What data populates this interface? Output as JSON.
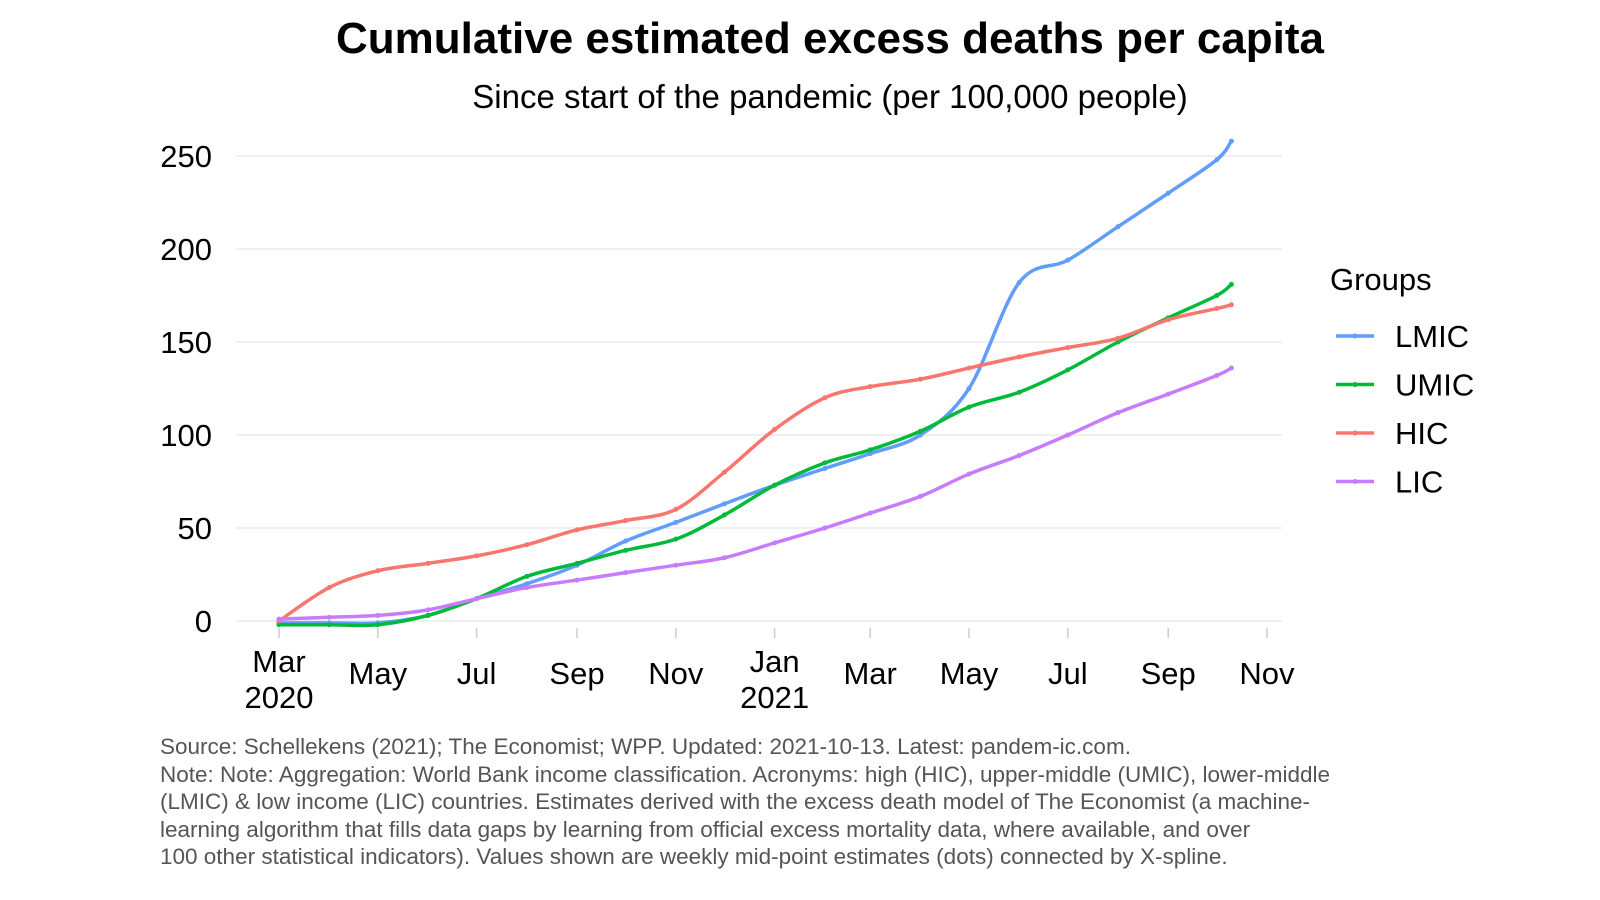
{
  "chart_data": {
    "type": "line",
    "title": "Cumulative estimated excess deaths per capita",
    "subtitle": "Since start of the pandemic (per 100,000 people)",
    "xlabel": "",
    "ylabel": "",
    "ylim": [
      0,
      250
    ],
    "yticks": [
      0,
      50,
      100,
      150,
      200,
      250
    ],
    "xlim": [
      "2020-03-01",
      "2021-11-01"
    ],
    "xticks": [
      {
        "date": "2020-03-01",
        "label": "Mar",
        "year": "2020"
      },
      {
        "date": "2020-05-01",
        "label": "May",
        "year": ""
      },
      {
        "date": "2020-07-01",
        "label": "Jul",
        "year": ""
      },
      {
        "date": "2020-09-01",
        "label": "Sep",
        "year": ""
      },
      {
        "date": "2020-11-01",
        "label": "Nov",
        "year": ""
      },
      {
        "date": "2021-01-01",
        "label": "Jan",
        "year": "2021"
      },
      {
        "date": "2021-03-01",
        "label": "Mar",
        "year": ""
      },
      {
        "date": "2021-05-01",
        "label": "May",
        "year": ""
      },
      {
        "date": "2021-07-01",
        "label": "Jul",
        "year": ""
      },
      {
        "date": "2021-09-01",
        "label": "Sep",
        "year": ""
      },
      {
        "date": "2021-11-01",
        "label": "Nov",
        "year": ""
      }
    ],
    "grid": true,
    "legend": {
      "title": "Groups",
      "placement": "right"
    },
    "x": [
      "2020-03-01",
      "2020-04-01",
      "2020-05-01",
      "2020-06-01",
      "2020-07-01",
      "2020-08-01",
      "2020-09-01",
      "2020-10-01",
      "2020-11-01",
      "2020-12-01",
      "2021-01-01",
      "2021-02-01",
      "2021-03-01",
      "2021-04-01",
      "2021-05-01",
      "2021-06-01",
      "2021-07-01",
      "2021-08-01",
      "2021-09-01",
      "2021-10-01",
      "2021-10-10"
    ],
    "series": [
      {
        "name": "LMIC",
        "color": "#619CFF",
        "values": [
          -1,
          -1,
          -1,
          3,
          12,
          20,
          30,
          43,
          53,
          63,
          73,
          82,
          90,
          100,
          125,
          182,
          194,
          212,
          230,
          248,
          258
        ]
      },
      {
        "name": "UMIC",
        "color": "#00BA38",
        "values": [
          -2,
          -2,
          -2,
          3,
          12,
          24,
          31,
          38,
          44,
          57,
          73,
          85,
          92,
          102,
          115,
          123,
          135,
          150,
          163,
          175,
          181
        ]
      },
      {
        "name": "HIC",
        "color": "#F8766D",
        "values": [
          0,
          18,
          27,
          31,
          35,
          41,
          49,
          54,
          60,
          80,
          103,
          120,
          126,
          130,
          136,
          142,
          147,
          152,
          162,
          168,
          170
        ]
      },
      {
        "name": "LIC",
        "color": "#C77CFF",
        "values": [
          1,
          2,
          3,
          6,
          12,
          18,
          22,
          26,
          30,
          34,
          42,
          50,
          58,
          67,
          79,
          89,
          100,
          112,
          122,
          132,
          136
        ]
      }
    ]
  },
  "footer": [
    "Source: Schellekens (2021); The Economist; WPP. Updated: 2021-10-13. Latest: pandem-ic.com.",
    "Note: Note: Aggregation: World Bank income classification. Acronyms: high (HIC), upper-middle (UMIC), lower-middle",
    "(LMIC) & low income (LIC) countries. Estimates derived with the excess death model of The Economist (a machine-",
    "learning algorithm that fills data gaps by learning from official excess mortality data, where available, and over",
    "100 other statistical indicators). Values shown are weekly mid-point estimates (dots) connected by X-spline."
  ]
}
